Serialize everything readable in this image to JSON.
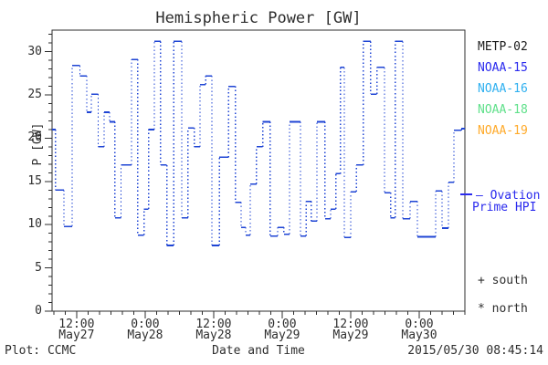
{
  "title": "Hemispheric Power [GW]",
  "colors": {
    "background": "#ffffff",
    "axis": "#2e2e2e",
    "curve": "#1f45d4",
    "ovation_blue": "#2a2aee"
  },
  "y_axis": {
    "label": "P [GW]",
    "major_ticks": [
      0,
      5,
      10,
      15,
      20,
      25,
      30
    ],
    "minor_step": 1,
    "range": [
      0,
      32.5
    ]
  },
  "x_axis": {
    "label": "Date and Time",
    "major_ticks": [
      {
        "t": 12,
        "time": "12:00",
        "date": "May27"
      },
      {
        "t": 24,
        "time": "0:00",
        "date": "May28"
      },
      {
        "t": 36,
        "time": "12:00",
        "date": "May28"
      },
      {
        "t": 48,
        "time": "0:00",
        "date": "May29"
      },
      {
        "t": 60,
        "time": "12:00",
        "date": "May29"
      },
      {
        "t": 72,
        "time": "0:00",
        "date": "May30"
      }
    ],
    "minor_step_hours": 2,
    "range_hours": [
      7.7,
      80
    ]
  },
  "legend": {
    "satellites": [
      {
        "label": "METP-02",
        "color": "#1c1c1c"
      },
      {
        "label": "NOAA-15",
        "color": "#2a2aee"
      },
      {
        "label": "NOAA-16",
        "color": "#2fb0f0"
      },
      {
        "label": "NOAA-18",
        "color": "#5fe08a"
      },
      {
        "label": "NOAA-19",
        "color": "#ffaa2a"
      }
    ],
    "model_line1": "— Ovation",
    "model_line2": "Prime HPI",
    "south_label": "+ south",
    "north_label": "* north"
  },
  "footer": {
    "plot_credit": "Plot: CCMC",
    "timestamp": "2015/05/30 08:45:14"
  },
  "chart_data": {
    "type": "line",
    "style": "steps-post-dotted-risers",
    "title": "Hemispheric Power [GW]",
    "xlabel": "Date and Time",
    "ylabel": "P [GW]",
    "x_unit": "hours since 2015-05-27 00:00 UT",
    "xlim": [
      7.7,
      80
    ],
    "ylim": [
      0,
      32.5
    ],
    "grid": false,
    "legend_position": "right",
    "series": [
      {
        "name": "Ovation Prime HPI",
        "color": "#1f45d4",
        "t_end": 80.0,
        "steps": [
          [
            7.7,
            21.0
          ],
          [
            8.3,
            14.0
          ],
          [
            9.8,
            9.8
          ],
          [
            11.2,
            28.4
          ],
          [
            12.6,
            27.2
          ],
          [
            13.8,
            23.0
          ],
          [
            14.6,
            25.1
          ],
          [
            15.8,
            19.0
          ],
          [
            16.8,
            23.0
          ],
          [
            17.8,
            21.9
          ],
          [
            18.7,
            10.8
          ],
          [
            19.8,
            16.9
          ],
          [
            21.6,
            29.1
          ],
          [
            22.7,
            8.8
          ],
          [
            23.8,
            11.8
          ],
          [
            24.6,
            21.0
          ],
          [
            25.6,
            31.2
          ],
          [
            26.7,
            16.9
          ],
          [
            27.8,
            7.6
          ],
          [
            29.0,
            31.2
          ],
          [
            30.4,
            10.8
          ],
          [
            31.5,
            21.2
          ],
          [
            32.6,
            19.0
          ],
          [
            33.6,
            26.2
          ],
          [
            34.6,
            27.2
          ],
          [
            35.7,
            7.6
          ],
          [
            37.0,
            17.8
          ],
          [
            38.6,
            26.0
          ],
          [
            39.8,
            12.6
          ],
          [
            40.8,
            9.7
          ],
          [
            41.6,
            8.8
          ],
          [
            42.4,
            14.7
          ],
          [
            43.5,
            19.0
          ],
          [
            44.6,
            21.9
          ],
          [
            45.9,
            8.7
          ],
          [
            47.2,
            9.7
          ],
          [
            48.3,
            8.9
          ],
          [
            49.3,
            21.9
          ],
          [
            51.2,
            8.7
          ],
          [
            52.2,
            12.7
          ],
          [
            53.1,
            10.4
          ],
          [
            54.1,
            21.9
          ],
          [
            55.5,
            10.7
          ],
          [
            56.5,
            11.8
          ],
          [
            57.4,
            15.9
          ],
          [
            58.2,
            28.2
          ],
          [
            58.9,
            8.5
          ],
          [
            60.0,
            13.8
          ],
          [
            61.0,
            16.9
          ],
          [
            62.2,
            31.2
          ],
          [
            63.5,
            25.1
          ],
          [
            64.6,
            28.2
          ],
          [
            65.9,
            13.7
          ],
          [
            67.0,
            10.8
          ],
          [
            67.8,
            31.2
          ],
          [
            69.1,
            10.7
          ],
          [
            70.4,
            12.7
          ],
          [
            71.7,
            8.6
          ],
          [
            73.8,
            8.6
          ],
          [
            74.9,
            13.9
          ],
          [
            76.0,
            9.6
          ],
          [
            77.1,
            14.9
          ],
          [
            78.1,
            20.9
          ],
          [
            79.4,
            21.1
          ]
        ]
      }
    ]
  }
}
